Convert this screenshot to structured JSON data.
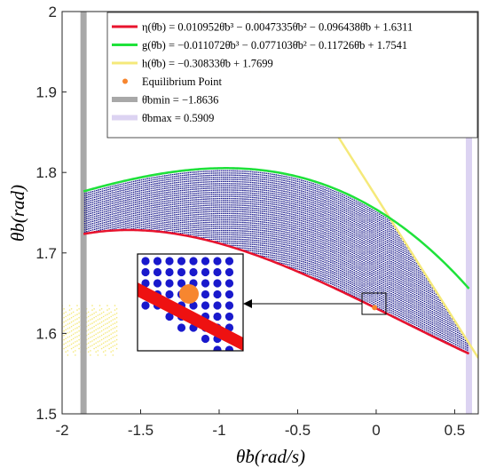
{
  "chart_data": {
    "type": "line",
    "xlabel": "θ̇b(rad/s)",
    "ylabel": "θb(rad)",
    "xlim": [
      -2,
      0.65
    ],
    "ylim": [
      1.5,
      2.0
    ],
    "x_ticks": [
      "-2",
      "-1.5",
      "-1",
      "-0.5",
      "0",
      "0.5"
    ],
    "y_ticks": [
      "1.5",
      "1.6",
      "1.7",
      "1.8",
      "1.9",
      "2"
    ],
    "grid": false,
    "legend_position": "top-right",
    "colors": {
      "eta": "#e8132d",
      "g": "#1fe23a",
      "h": "#f5e97a",
      "equilibrium": "#f7862f",
      "bmin": "#a8a8a8",
      "bmax": "#dcd3f2",
      "region": "#1a1a8c"
    },
    "domain": [
      -1.8636,
      0.5909
    ],
    "series": [
      {
        "key": "eta",
        "name": "η(θ̇b) = 0.010952θ̇b³ − 0.0047335θ̇b² − 0.096438θ̇b + 1.6311",
        "coefficients": [
          0.010952,
          -0.0047335,
          -0.096438,
          1.6311
        ]
      },
      {
        "key": "g",
        "name": "g(θ̇b) = −0.011072θ̇b³ − 0.077103θ̇b² − 0.11726θ̇b + 1.7541",
        "coefficients": [
          -0.011072,
          -0.077103,
          -0.11726,
          1.7541
        ]
      },
      {
        "key": "h",
        "name": "h(θ̇b) = −0.30833θ̇b + 1.7699",
        "coefficients": [
          -0.30833,
          1.7699
        ]
      }
    ],
    "equilibrium_point": {
      "name": "Equilibrium Point",
      "x": -0.01,
      "y": 1.632
    },
    "bmin": {
      "name": "θ̇bmin = −1.8636",
      "value": -1.8636
    },
    "bmax": {
      "name": "θ̇bmax = 0.5909",
      "value": 0.5909
    }
  }
}
